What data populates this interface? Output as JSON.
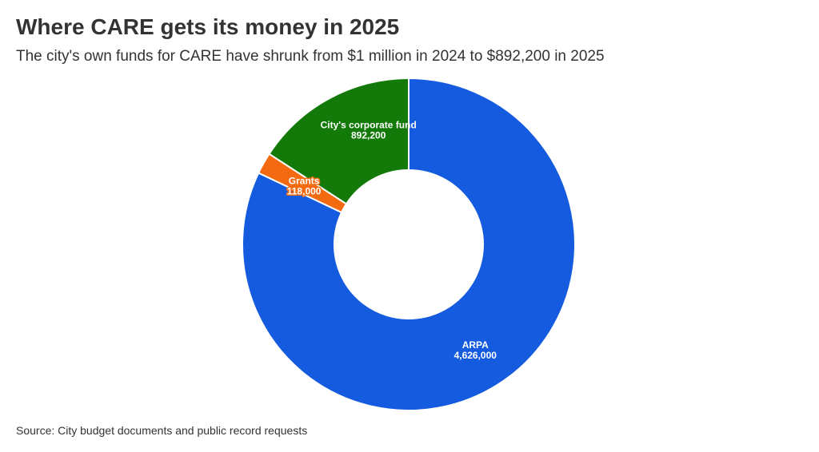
{
  "title": "Where CARE gets its money in 2025",
  "subtitle": "The city's own funds for CARE have shrunk from $1 million in 2024 to $892,200 in 2025",
  "source": "Source: City budget documents and public record requests",
  "chart_data": {
    "type": "pie",
    "donut": true,
    "slices": [
      {
        "label": "ARPA",
        "value": 4626000,
        "value_label": "4,626,000",
        "color": "#155bdf"
      },
      {
        "label": "Grants",
        "value": 118000,
        "value_label": "118,000",
        "color": "#f36a10"
      },
      {
        "label": "City's corporate fund",
        "value": 892200,
        "value_label": "892,200",
        "color": "#137a09"
      }
    ]
  }
}
